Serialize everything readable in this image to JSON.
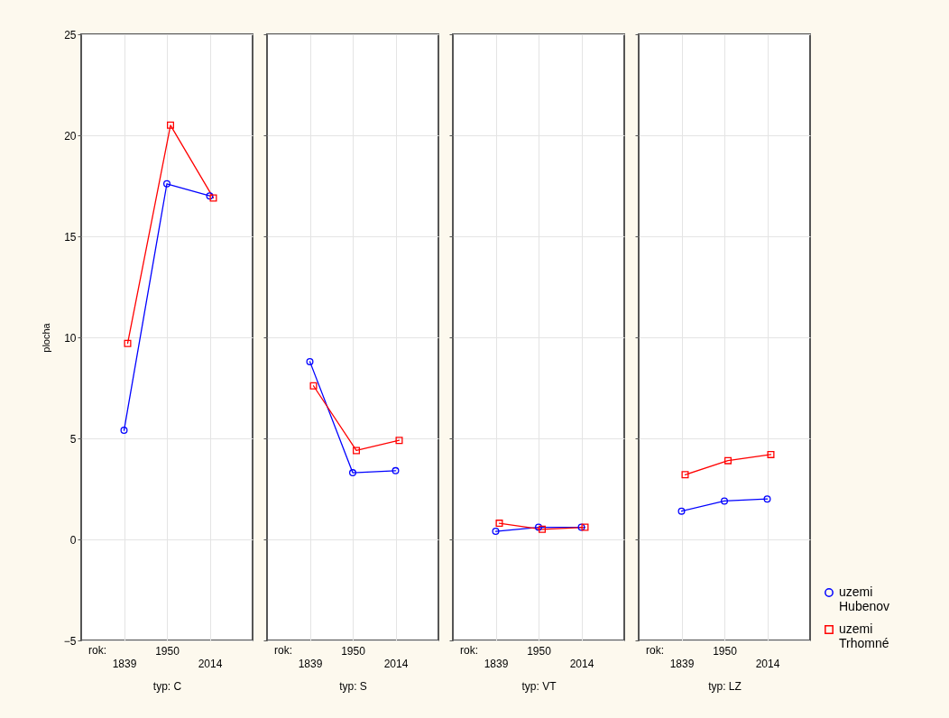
{
  "chart_data": [
    {
      "type": "line",
      "xlabel": "typ: C",
      "ylabel": "plocha",
      "categories": [
        "1839",
        "1950",
        "2014"
      ],
      "ylim": [
        -5,
        25
      ],
      "yticks": [
        -5,
        0,
        5,
        10,
        15,
        20,
        25
      ],
      "grid": true,
      "annotations": [
        "rok:"
      ],
      "series": [
        {
          "color": "#0000ff",
          "marker": "circle",
          "values": [
            5.4,
            17.6,
            17.0
          ]
        },
        {
          "color": "#ff0000",
          "marker": "square",
          "values": [
            9.7,
            20.5,
            16.9
          ]
        }
      ]
    },
    {
      "type": "line",
      "xlabel": "typ: S",
      "categories": [
        "1839",
        "1950",
        "2014"
      ],
      "ylim": [
        -5,
        25
      ],
      "yticks": [
        -5,
        0,
        5,
        10,
        15,
        20,
        25
      ],
      "grid": true,
      "tick_labels": "x",
      "annotations": [
        "rok:"
      ],
      "series": [
        {
          "color": "#0000ff",
          "marker": "circle",
          "values": [
            8.8,
            3.3,
            3.4
          ]
        },
        {
          "color": "#ff0000",
          "marker": "square",
          "values": [
            7.6,
            4.4,
            4.9
          ]
        }
      ]
    },
    {
      "type": "line",
      "xlabel": "typ: VT",
      "categories": [
        "1839",
        "1950",
        "2014"
      ],
      "ylim": [
        -5,
        25
      ],
      "yticks": [
        -5,
        0,
        5,
        10,
        15,
        20,
        25
      ],
      "grid": true,
      "tick_labels": "x",
      "annotations": [
        "rok:"
      ],
      "series": [
        {
          "color": "#0000ff",
          "marker": "circle",
          "values": [
            0.4,
            0.6,
            0.6
          ]
        },
        {
          "color": "#ff0000",
          "marker": "square",
          "values": [
            0.8,
            0.5,
            0.6
          ]
        }
      ]
    },
    {
      "type": "line",
      "xlabel": "typ: LZ",
      "categories": [
        "1839",
        "1950",
        "2014"
      ],
      "ylim": [
        -5,
        25
      ],
      "yticks": [
        -5,
        0,
        5,
        10,
        15,
        20,
        25
      ],
      "grid": true,
      "tick_labels": "x",
      "legend": "bottom right",
      "annotations": [
        "rok:"
      ],
      "series": [
        {
          "name": "uzemi Hubenov",
          "color": "#0000ff",
          "marker": "circle",
          "values": [
            1.4,
            1.9,
            2.0
          ]
        },
        {
          "name": "uzemi Trhomné",
          "color": "#ff0000",
          "marker": "square",
          "values": [
            3.2,
            3.9,
            4.2
          ]
        }
      ]
    }
  ]
}
